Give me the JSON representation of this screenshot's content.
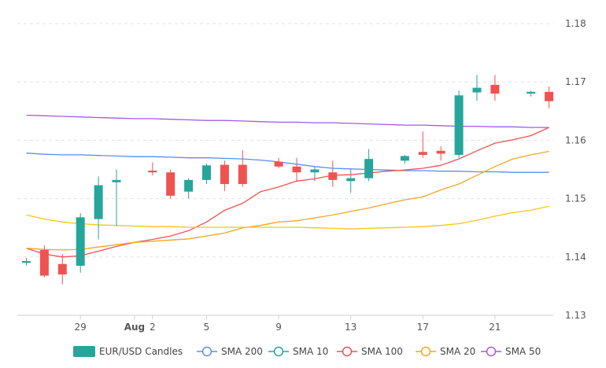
{
  "chart_data": {
    "type": "candlestick",
    "title": "",
    "xlabel": "",
    "ylabel": "",
    "ylim": [
      1.13,
      1.18
    ],
    "y_ticks": [
      "1.18",
      "1.17",
      "1.16",
      "1.15",
      "1.14",
      "1.13"
    ],
    "y_tick_values": [
      1.18,
      1.17,
      1.16,
      1.15,
      1.14,
      1.13
    ],
    "grid": "horizontal dashed",
    "legend_position": "bottom",
    "x_tick_labels": [
      {
        "label": "29",
        "index": 3
      },
      {
        "label": "Aug",
        "index": 6
      },
      {
        "label": "2",
        "index": 7
      },
      {
        "label": "5",
        "index": 10
      },
      {
        "label": "9",
        "index": 14
      },
      {
        "label": "13",
        "index": 18
      },
      {
        "label": "17",
        "index": 22
      },
      {
        "label": "21",
        "index": 26
      }
    ],
    "candles": {
      "name": "EUR/USD Candles",
      "up_color": "#26a69a",
      "down_color": "#ef5350",
      "open": [
        1.139,
        1.1412,
        1.1388,
        1.1385,
        1.1465,
        1.1528,
        null,
        1.1548,
        1.1545,
        1.1512,
        1.1532,
        1.1558,
        1.1558,
        null,
        1.1563,
        1.1555,
        1.1545,
        1.1545,
        1.153,
        1.1535,
        null,
        1.1565,
        1.158,
        1.1582,
        1.1575,
        1.1682,
        1.1695,
        null,
        1.168,
        1.1683
      ],
      "high": [
        1.1398,
        1.142,
        1.1405,
        1.1475,
        1.1538,
        1.155,
        null,
        1.1562,
        1.155,
        1.1535,
        1.156,
        1.1565,
        1.1583,
        null,
        1.157,
        1.157,
        1.1555,
        1.1565,
        1.155,
        1.1585,
        null,
        1.1575,
        1.1615,
        1.159,
        1.1685,
        1.1712,
        1.1712,
        null,
        1.1685,
        1.1692
      ],
      "low": [
        1.1385,
        1.1365,
        1.1353,
        1.1373,
        1.143,
        1.1453,
        null,
        1.154,
        1.15,
        1.15,
        1.1525,
        1.1513,
        1.152,
        null,
        1.1552,
        1.153,
        1.153,
        1.152,
        1.151,
        1.153,
        null,
        1.156,
        1.157,
        1.1565,
        1.157,
        1.1668,
        1.1668,
        null,
        1.1675,
        1.1655
      ],
      "close": [
        1.1393,
        1.1368,
        1.137,
        1.1468,
        1.1523,
        1.1532,
        null,
        1.1545,
        1.1505,
        1.1532,
        1.1557,
        1.1525,
        1.1525,
        null,
        1.1555,
        1.1545,
        1.155,
        1.1532,
        1.1535,
        1.1568,
        null,
        1.1573,
        1.1575,
        1.1577,
        1.1677,
        1.169,
        1.168,
        null,
        1.1683,
        1.1667
      ]
    },
    "series": [
      {
        "name": "SMA 200",
        "color": "#5b8def",
        "values": [
          1.1578,
          1.1576,
          1.1575,
          1.1575,
          1.1574,
          1.1573,
          1.1572,
          1.1572,
          1.1571,
          1.157,
          1.157,
          1.1569,
          1.1568,
          1.1566,
          1.1563,
          1.1559,
          1.1555,
          1.1552,
          1.1551,
          1.155,
          1.1549,
          1.1548,
          1.1548,
          1.1547,
          1.1547,
          1.1546,
          1.1546,
          1.1545,
          1.1545,
          1.1545
        ]
      },
      {
        "name": "SMA 10",
        "color": "#26a69a",
        "values": [
          null,
          null,
          null,
          null,
          null,
          null,
          null,
          null,
          null,
          null,
          null,
          null,
          null,
          null,
          null,
          null,
          null,
          null,
          null,
          null,
          null,
          null,
          null,
          null,
          null,
          null,
          null,
          null,
          null,
          null
        ]
      },
      {
        "name": "SMA 100",
        "color": "#ef5350",
        "values": [
          1.1415,
          1.1405,
          1.14,
          1.1402,
          1.141,
          1.1418,
          1.1425,
          1.143,
          1.1436,
          1.1445,
          1.146,
          1.148,
          1.1492,
          1.1512,
          1.152,
          1.153,
          1.1534,
          1.154,
          1.1541,
          1.1544,
          1.1547,
          1.1549,
          1.1552,
          1.1557,
          1.1568,
          1.1582,
          1.1595,
          1.1601,
          1.1608,
          1.1622
        ]
      },
      {
        "name": "SMA 20",
        "color": "#f5a623",
        "values": [
          1.1415,
          1.1413,
          1.1412,
          1.1413,
          1.1417,
          1.1421,
          1.1425,
          1.1427,
          1.1429,
          1.1431,
          1.1436,
          1.1441,
          1.145,
          1.1454,
          1.146,
          1.1462,
          1.1467,
          1.1472,
          1.1478,
          1.1484,
          1.1491,
          1.1498,
          1.1503,
          1.1515,
          1.1525,
          1.154,
          1.1555,
          1.1568,
          1.1575,
          1.1581
        ]
      },
      {
        "name": "SMA 50",
        "color": "#a05be6",
        "values": [
          1.1643,
          1.1642,
          1.1641,
          1.164,
          1.1639,
          1.1638,
          1.1637,
          1.1637,
          1.1636,
          1.1635,
          1.1634,
          1.1634,
          1.1633,
          1.1632,
          1.1631,
          1.1631,
          1.163,
          1.163,
          1.1629,
          1.1628,
          1.1627,
          1.1626,
          1.1626,
          1.1625,
          1.1624,
          1.1624,
          1.1623,
          1.1623,
          1.1622,
          1.1622
        ]
      },
      {
        "name": "SMA 20 band",
        "color": "#f5c518",
        "values": [
          1.1472,
          1.1465,
          1.146,
          1.1457,
          1.1455,
          1.1454,
          1.1453,
          1.1452,
          1.1452,
          1.1451,
          1.1451,
          1.1451,
          1.1451,
          1.1451,
          1.1451,
          1.1451,
          1.145,
          1.1449,
          1.1448,
          1.1449,
          1.145,
          1.1451,
          1.1452,
          1.1454,
          1.1457,
          1.1463,
          1.147,
          1.1476,
          1.148,
          1.1487
        ]
      }
    ],
    "legend": [
      {
        "label": "EUR/USD Candles",
        "marker": "box",
        "color": "#26a69a"
      },
      {
        "label": "SMA 200",
        "marker": "circle",
        "color": "#5b8def"
      },
      {
        "label": "SMA 10",
        "marker": "circle",
        "color": "#26a69a"
      },
      {
        "label": "SMA 100",
        "marker": "circle",
        "color": "#ef5350"
      },
      {
        "label": "SMA 20",
        "marker": "circle",
        "color": "#f5a623"
      },
      {
        "label": "SMA 50",
        "marker": "circle",
        "color": "#a05be6"
      }
    ]
  }
}
